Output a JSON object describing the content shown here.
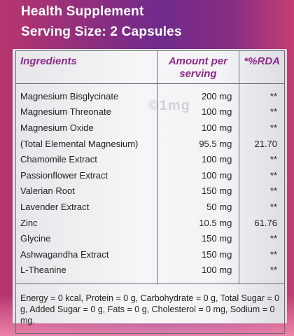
{
  "header": {
    "title": "Health Supplement",
    "serving": "Serving Size: 2 Capsules"
  },
  "table": {
    "headers": {
      "ingredients": "Ingredients",
      "amount": "Amount per serving",
      "rda": "*%RDA"
    },
    "rows": [
      {
        "name": "Magnesium Bisglycinate",
        "amount": "200 mg",
        "rda": "**"
      },
      {
        "name": "Magnesium Threonate",
        "amount": "100 mg",
        "rda": "**"
      },
      {
        "name": "Magnesium Oxide",
        "amount": "100 mg",
        "rda": "**"
      },
      {
        "name": "(Total Elemental Magnesium)",
        "amount": "95.5 mg",
        "rda": "21.70"
      },
      {
        "name": "Chamomile Extract",
        "amount": "100 mg",
        "rda": "**"
      },
      {
        "name": "Passionflower Extract",
        "amount": "100 mg",
        "rda": "**"
      },
      {
        "name": "Valerian Root",
        "amount": "150 mg",
        "rda": "**"
      },
      {
        "name": "Lavender Extract",
        "amount": "50 mg",
        "rda": "**"
      },
      {
        "name": "Zinc",
        "amount": "10.5 mg",
        "rda": "61.76"
      },
      {
        "name": "Glycine",
        "amount": "150 mg",
        "rda": "**"
      },
      {
        "name": "Ashwagandha Extract",
        "amount": "150 mg",
        "rda": "**"
      },
      {
        "name": "L-Theanine",
        "amount": "100 mg",
        "rda": "**"
      }
    ],
    "footnote": "Energy = 0 kcal, Protein = 0 g, Carbohydrate = 0 g, Total Sugar = 0 g, Added Sugar = 0 g, Fats = 0 g, Cholesterol = 0 mg, Sodium = 0 mg."
  },
  "watermark": "©1mg",
  "colors": {
    "header_text": "#ffffff",
    "column_header": "#8e2a8a",
    "border": "#6a6a74"
  }
}
